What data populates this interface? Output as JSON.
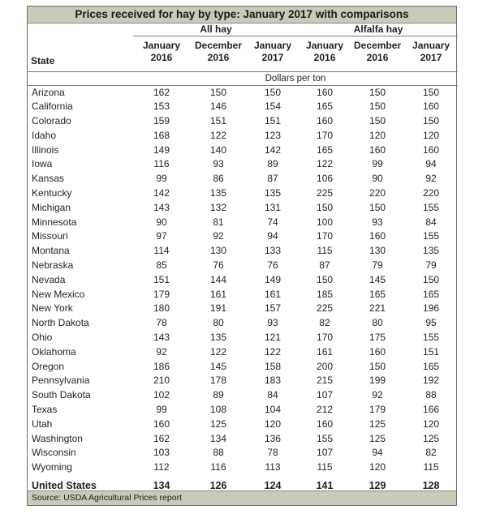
{
  "title": "Prices received for hay by type: January 2017 with comparisons",
  "groups": {
    "all_hay": "All hay",
    "alfalfa_hay": "Alfalfa hay"
  },
  "state_header": "State",
  "columns": [
    {
      "month": "January",
      "year": "2016"
    },
    {
      "month": "December",
      "year": "2016"
    },
    {
      "month": "January",
      "year": "2017"
    },
    {
      "month": "January",
      "year": "2016"
    },
    {
      "month": "December",
      "year": "2016"
    },
    {
      "month": "January",
      "year": "2017"
    }
  ],
  "unit": "Dollars per ton",
  "rows": [
    {
      "state": "Arizona",
      "values": [
        "162",
        "150",
        "150",
        "160",
        "150",
        "150"
      ]
    },
    {
      "state": "California",
      "values": [
        "153",
        "146",
        "154",
        "165",
        "150",
        "160"
      ]
    },
    {
      "state": "Colorado",
      "values": [
        "159",
        "151",
        "151",
        "160",
        "150",
        "150"
      ]
    },
    {
      "state": "Idaho",
      "values": [
        "168",
        "122",
        "123",
        "170",
        "120",
        "120"
      ]
    },
    {
      "state": "Illinois",
      "values": [
        "149",
        "140",
        "142",
        "165",
        "160",
        "160"
      ]
    },
    {
      "state": "Iowa",
      "values": [
        "116",
        "93",
        "89",
        "122",
        "99",
        "94"
      ]
    },
    {
      "state": "Kansas",
      "values": [
        "99",
        "86",
        "87",
        "106",
        "90",
        "92"
      ]
    },
    {
      "state": "Kentucky",
      "values": [
        "142",
        "135",
        "135",
        "225",
        "220",
        "220"
      ]
    },
    {
      "state": "Michigan",
      "values": [
        "143",
        "132",
        "131",
        "150",
        "150",
        "155"
      ]
    },
    {
      "state": "Minnesota",
      "values": [
        "90",
        "81",
        "74",
        "100",
        "93",
        "84"
      ]
    },
    {
      "state": "Missouri",
      "values": [
        "97",
        "92",
        "94",
        "170",
        "160",
        "155"
      ]
    },
    {
      "state": "Montana",
      "values": [
        "114",
        "130",
        "133",
        "115",
        "130",
        "135"
      ]
    },
    {
      "state": "Nebraska",
      "values": [
        "85",
        "76",
        "76",
        "87",
        "79",
        "79"
      ]
    },
    {
      "state": "Nevada",
      "values": [
        "151",
        "144",
        "149",
        "150",
        "145",
        "150"
      ]
    },
    {
      "state": "New Mexico",
      "values": [
        "179",
        "161",
        "161",
        "185",
        "165",
        "165"
      ]
    },
    {
      "state": "New York",
      "values": [
        "180",
        "191",
        "157",
        "225",
        "221",
        "196"
      ]
    },
    {
      "state": "North Dakota",
      "values": [
        "78",
        "80",
        "93",
        "82",
        "80",
        "95"
      ]
    },
    {
      "state": "Ohio",
      "values": [
        "143",
        "135",
        "121",
        "170",
        "175",
        "155"
      ]
    },
    {
      "state": "Oklahoma",
      "values": [
        "92",
        "122",
        "122",
        "161",
        "160",
        "151"
      ]
    },
    {
      "state": "Oregon",
      "values": [
        "186",
        "145",
        "158",
        "200",
        "150",
        "165"
      ]
    },
    {
      "state": "Pennsylvania",
      "values": [
        "210",
        "178",
        "183",
        "215",
        "199",
        "192"
      ]
    },
    {
      "state": "South Dakota",
      "values": [
        "102",
        "89",
        "84",
        "107",
        "92",
        "88"
      ]
    },
    {
      "state": "Texas",
      "values": [
        "99",
        "108",
        "104",
        "212",
        "179",
        "166"
      ]
    },
    {
      "state": "Utah",
      "values": [
        "160",
        "125",
        "120",
        "160",
        "125",
        "120"
      ]
    },
    {
      "state": "Washington",
      "values": [
        "162",
        "134",
        "136",
        "155",
        "125",
        "125"
      ]
    },
    {
      "state": "Wisconsin",
      "values": [
        "103",
        "88",
        "78",
        "107",
        "94",
        "82"
      ]
    },
    {
      "state": "Wyoming",
      "values": [
        "112",
        "116",
        "113",
        "115",
        "120",
        "115"
      ]
    }
  ],
  "total": {
    "state": "United States",
    "values": [
      "134",
      "126",
      "124",
      "141",
      "129",
      "128"
    ]
  },
  "source": "Source: USDA Agricultural Prices report"
}
